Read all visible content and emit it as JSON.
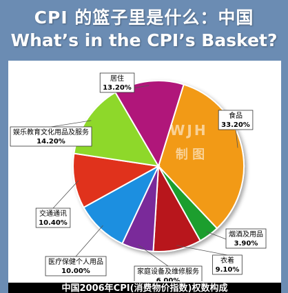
{
  "header": {
    "title_cn": "CPI 的篮子里是什么：中国",
    "title_en": "What’s in the CPI’s Basket?"
  },
  "watermark": {
    "line1": "WJH",
    "line2": "制  图"
  },
  "footer": {
    "caption": "中国2006年CPI(消费物价指数)权数构成"
  },
  "chart_data": {
    "type": "pie",
    "title": "",
    "unit": "%",
    "slices": [
      {
        "label": "食品",
        "value": 33.2,
        "display": "33.20%",
        "color": "#f29a14"
      },
      {
        "label": "烟酒及用品",
        "value": 3.9,
        "display": "3.90%",
        "color": "#1f9e2e"
      },
      {
        "label": "衣着",
        "value": 9.1,
        "display": "9.10%",
        "color": "#b8141e"
      },
      {
        "label": "家庭设备及维修服务",
        "value": 6.0,
        "display": "6.00%",
        "color": "#7a2a9a"
      },
      {
        "label": "医疗保健个人用品",
        "value": 10.0,
        "display": "10.00%",
        "color": "#1a8fe0"
      },
      {
        "label": "交通通讯",
        "value": 10.4,
        "display": "10.40%",
        "color": "#e0301a"
      },
      {
        "label": "娱乐教育文化用品及服务",
        "value": 14.2,
        "display": "14.20%",
        "color": "#8ed82a"
      },
      {
        "label": "居住",
        "value": 13.2,
        "display": "13.20%",
        "color": "#b0187a"
      }
    ]
  }
}
